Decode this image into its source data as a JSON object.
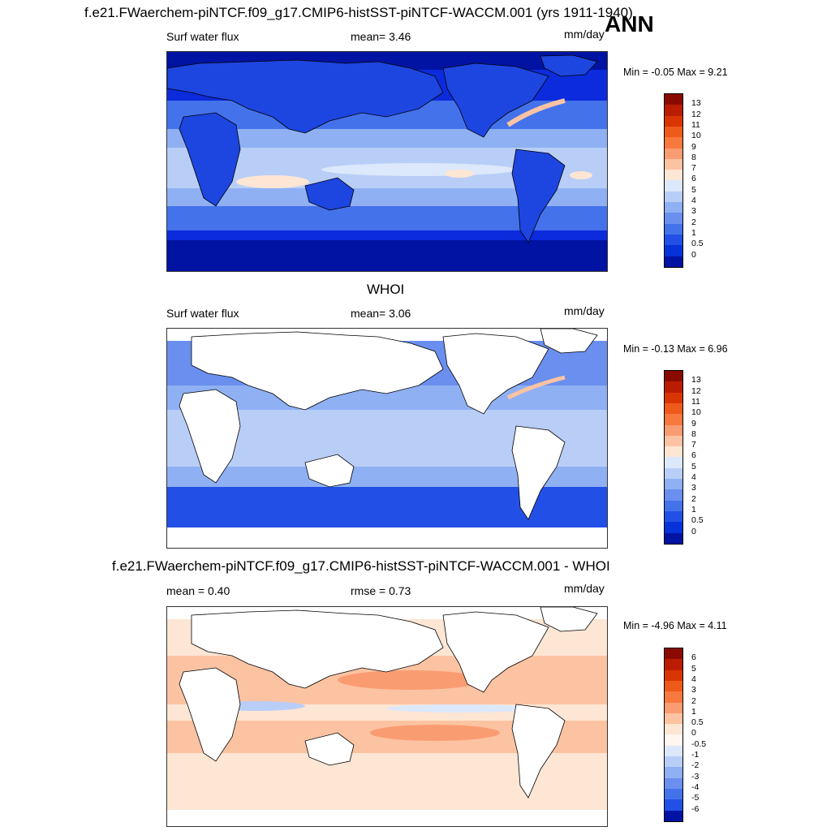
{
  "header": {
    "title": "f.e21.FWaerchem-piNTCF.f09_g17.CMIP6-histSST-piNTCF-WACCM.001 (yrs 1911-1940)",
    "season": "ANN"
  },
  "panels": [
    {
      "id": "model",
      "left_label": "Surf water flux",
      "center_label": "mean=   3.46",
      "units": "mm/day",
      "minmax": "Min =  -0.05 Max =   9.21",
      "colorbar_labels": [
        "13",
        "12",
        "11",
        "10",
        "9",
        "8",
        "7",
        "6",
        "5",
        "4",
        "3",
        "2",
        "1",
        "0.5",
        "0"
      ],
      "colorbar_colors": [
        "#8b0a00",
        "#b91c00",
        "#d93500",
        "#ee5a1a",
        "#f8793e",
        "#fa9c72",
        "#fcc3a2",
        "#fde6d4",
        "#dce8fb",
        "#b9cef7",
        "#8fb0f3",
        "#6a8fef",
        "#4472eb",
        "#2250e6",
        "#0632d9",
        "#0013a2"
      ],
      "map_colors": {
        "ocean_deep": "#0b2bdc",
        "ocean_mid": "#4472eb",
        "ocean_light": "#8fb0f3",
        "tropics": "#b9cef7",
        "land": "#1d45e0",
        "highlight": "#fcc3a2"
      }
    },
    {
      "id": "obs",
      "title": "WHOI",
      "left_label": "Surf water flux",
      "center_label": "mean=   3.06",
      "units": "mm/day",
      "minmax": "Min =  -0.13 Max =   6.96",
      "colorbar_labels": [
        "13",
        "12",
        "11",
        "10",
        "9",
        "8",
        "7",
        "6",
        "5",
        "4",
        "3",
        "2",
        "1",
        "0.5",
        "0"
      ],
      "colorbar_colors": [
        "#8b0a00",
        "#b91c00",
        "#d93500",
        "#ee5a1a",
        "#f8793e",
        "#fa9c72",
        "#fcc3a2",
        "#fde6d4",
        "#dce8fb",
        "#b9cef7",
        "#8fb0f3",
        "#6a8fef",
        "#4472eb",
        "#2250e6",
        "#0632d9",
        "#0013a2"
      ]
    },
    {
      "id": "diff",
      "title": "f.e21.FWaerchem-piNTCF.f09_g17.CMIP6-histSST-piNTCF-WACCM.001 - WHOI",
      "left_label": "mean =   0.40",
      "center_label": "rmse =   0.73",
      "units": "mm/day",
      "minmax": "Min =  -4.96 Max =   4.11",
      "colorbar_labels": [
        "6",
        "5",
        "4",
        "3",
        "2",
        "1",
        "0.5",
        "0",
        "-0.5",
        "-1",
        "-2",
        "-3",
        "-4",
        "-5",
        "-6"
      ],
      "colorbar_colors": [
        "#8b0a00",
        "#b91c00",
        "#d93500",
        "#ee5a1a",
        "#f8793e",
        "#fa9c72",
        "#fcc3a2",
        "#fde6d4",
        "#fff6ef",
        "#dce8fb",
        "#b9cef7",
        "#8fb0f3",
        "#6a8fef",
        "#4472eb",
        "#2250e6",
        "#0013a2"
      ]
    }
  ]
}
